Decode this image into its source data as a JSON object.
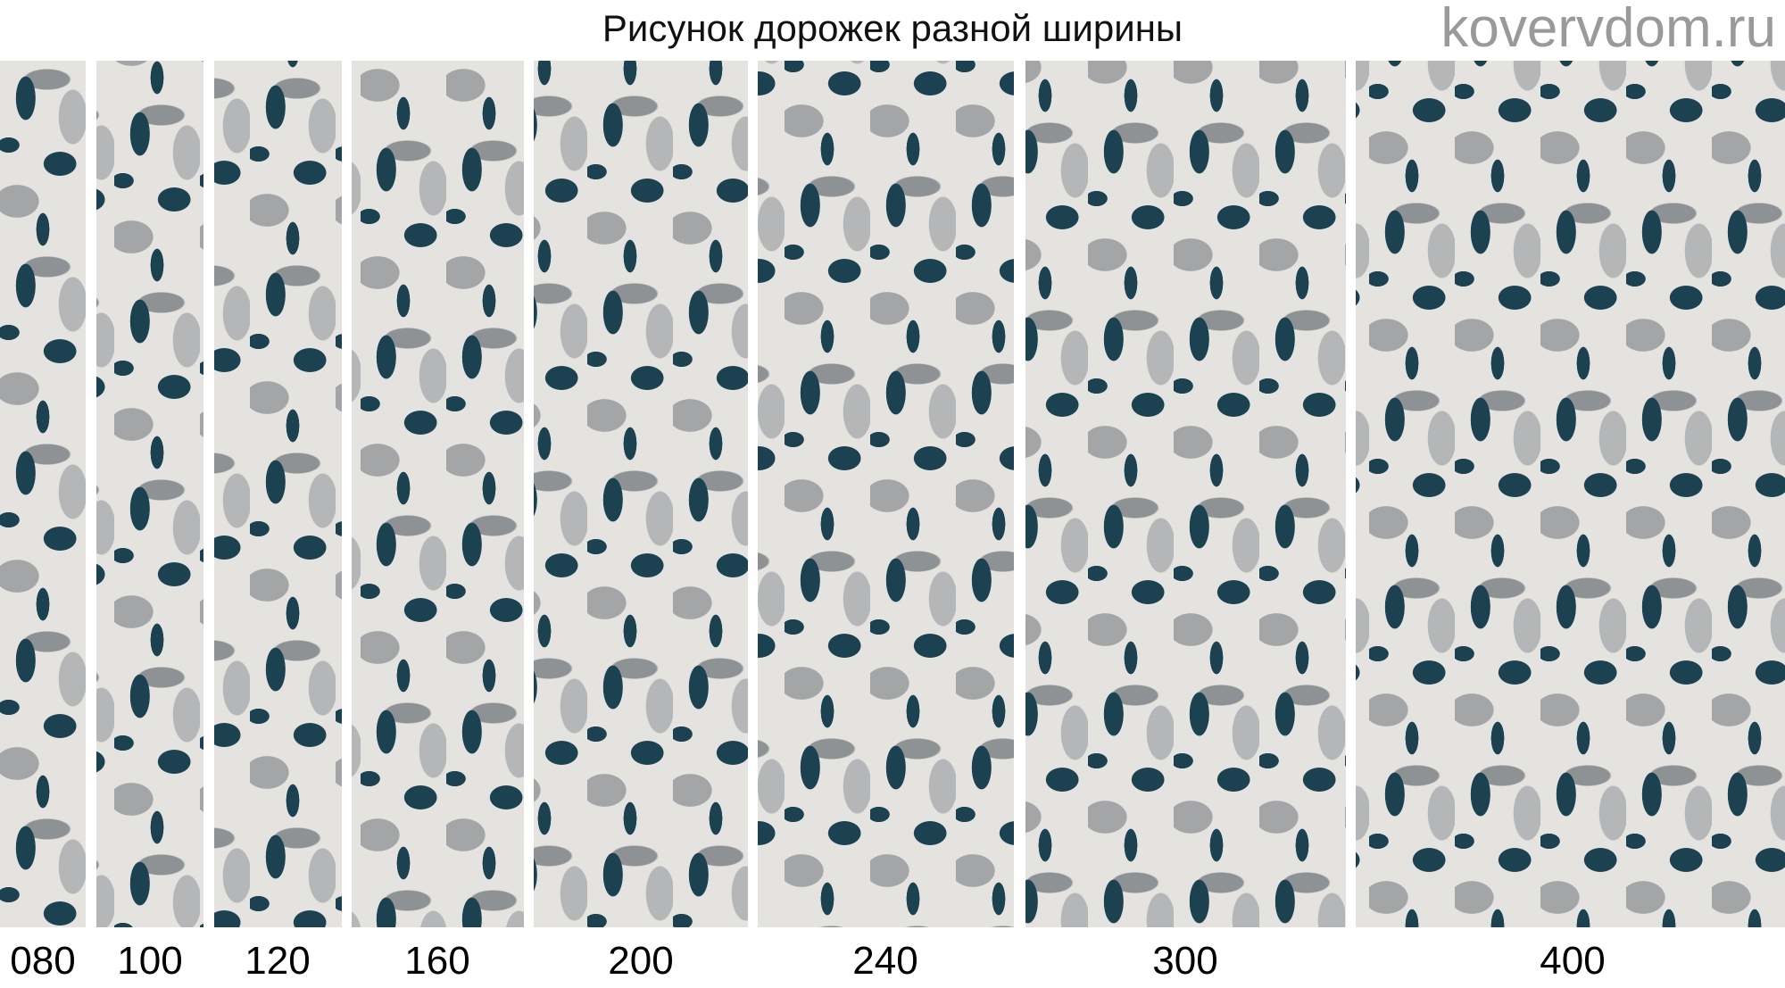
{
  "title": "Рисунок дорожек разной ширины",
  "widths": [
    "080",
    "100",
    "120",
    "160",
    "200",
    "240",
    "300",
    "400"
  ],
  "watermark": "kovervdom.ru",
  "colors": {
    "dark_teal": "#1c4150",
    "light": "#e4e3e0",
    "gray": "#a3a5a7"
  }
}
